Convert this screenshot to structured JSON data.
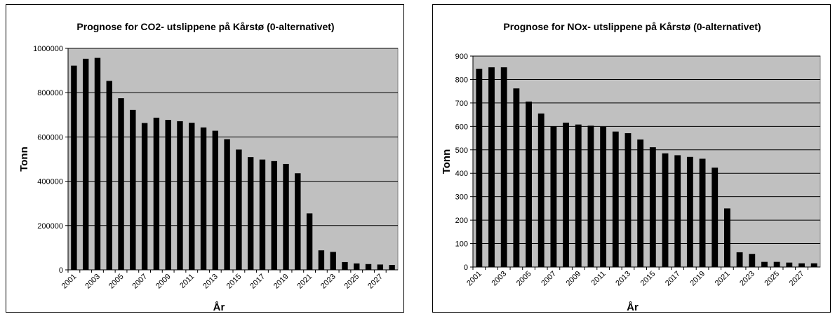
{
  "chart_data": [
    {
      "type": "bar",
      "title": "Prognose for CO2- utslippene på Kårstø (0-alternativet)",
      "xlabel": "År",
      "ylabel": "Tonn",
      "ylim": [
        0,
        1000000
      ],
      "yticks": [
        "0",
        "200000",
        "400000",
        "600000",
        "800000",
        "1000000"
      ],
      "categories": [
        "2001",
        "2002",
        "2003",
        "2004",
        "2005",
        "2006",
        "2007",
        "2008",
        "2009",
        "2010",
        "2011",
        "2012",
        "2013",
        "2014",
        "2015",
        "2016",
        "2017",
        "2018",
        "2019",
        "2020",
        "2021",
        "2022",
        "2023",
        "2024",
        "2025",
        "2026",
        "2027",
        "2028"
      ],
      "xtick_labels": [
        "2001",
        "2003",
        "2005",
        "2007",
        "2009",
        "2011",
        "2013",
        "2015",
        "2017",
        "2019",
        "2021",
        "2023",
        "2025",
        "2027"
      ],
      "values": [
        922000,
        953000,
        957000,
        853000,
        775000,
        722000,
        663000,
        687000,
        677000,
        671000,
        664000,
        643000,
        628000,
        590000,
        543000,
        509000,
        498000,
        491000,
        478000,
        436000,
        255000,
        88000,
        81000,
        35000,
        29000,
        26000,
        24000,
        22000
      ],
      "grid": true,
      "plot_background": "#c0c0c0",
      "bar_color": "#000000"
    },
    {
      "type": "bar",
      "title": "Prognose for NOx- utslippene på Kårstø (0-alternativet)",
      "xlabel": "År",
      "ylabel": "Tonn",
      "ylim": [
        0,
        900
      ],
      "yticks": [
        "0",
        "100",
        "200",
        "300",
        "400",
        "500",
        "600",
        "700",
        "800",
        "900"
      ],
      "categories": [
        "2001",
        "2002",
        "2003",
        "2004",
        "2005",
        "2006",
        "2007",
        "2008",
        "2009",
        "2010",
        "2011",
        "2012",
        "2013",
        "2014",
        "2015",
        "2016",
        "2017",
        "2018",
        "2019",
        "2020",
        "2021",
        "2022",
        "2023",
        "2024",
        "2025",
        "2026",
        "2027",
        "2028"
      ],
      "xtick_labels": [
        "2001",
        "2003",
        "2005",
        "2007",
        "2009",
        "2011",
        "2013",
        "2015",
        "2017",
        "2019",
        "2021",
        "2023",
        "2025",
        "2027"
      ],
      "values": [
        846,
        852,
        852,
        762,
        706,
        655,
        599,
        616,
        608,
        603,
        598,
        578,
        571,
        544,
        511,
        485,
        477,
        470,
        462,
        424,
        250,
        63,
        56,
        22,
        22,
        19,
        16,
        16
      ],
      "grid": true,
      "plot_background": "#c0c0c0",
      "bar_color": "#000000"
    }
  ]
}
